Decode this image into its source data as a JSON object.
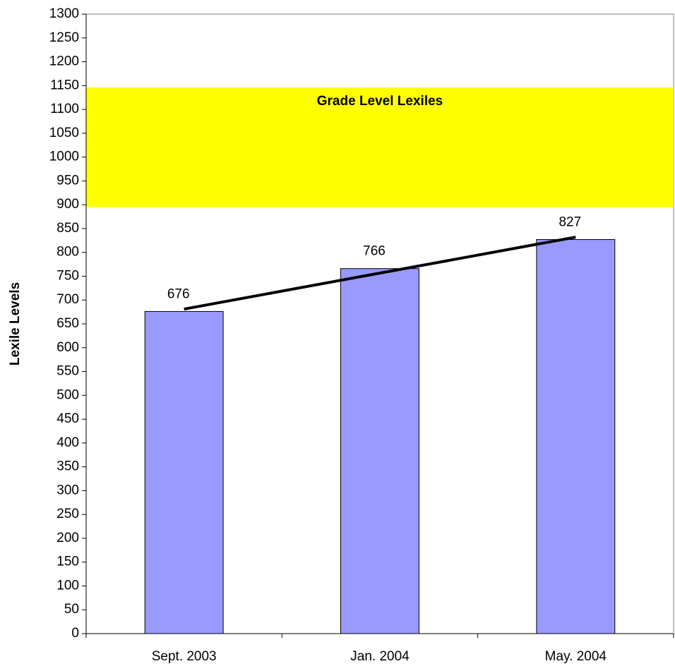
{
  "chart_data": {
    "type": "bar",
    "y_label": "Lexile Levels",
    "categories": [
      "Sept. 2003",
      "Jan. 2004",
      "May. 2004"
    ],
    "values": [
      676,
      766,
      827
    ],
    "color": "#9999ff",
    "ylim": [
      0,
      1300
    ],
    "yticks": [
      0,
      50,
      100,
      150,
      200,
      250,
      300,
      350,
      400,
      450,
      500,
      550,
      600,
      650,
      700,
      750,
      800,
      850,
      900,
      950,
      1000,
      1050,
      1100,
      1150,
      1200,
      1250,
      1300
    ],
    "band": {
      "label": "Grade Level Lexiles",
      "low": 895,
      "high": 1146,
      "color": "#ffff00"
    },
    "trend_line": {
      "start": 681,
      "end": 832,
      "color": "#000000"
    }
  }
}
